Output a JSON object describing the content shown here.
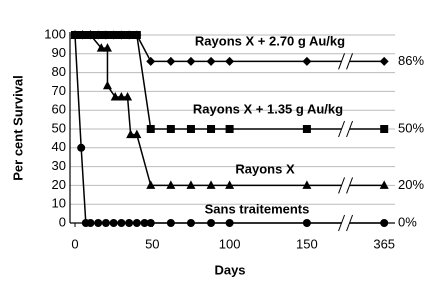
{
  "chart_data": {
    "type": "line",
    "y_label": "Per cent Survival",
    "x_label": "Days",
    "x": [
      0,
      5,
      10,
      15,
      20,
      25,
      30,
      35,
      40,
      49,
      62,
      75,
      88,
      100,
      150,
      365
    ],
    "xlim": [
      0,
      365
    ],
    "xticks": [
      0,
      50,
      100,
      150,
      365
    ],
    "ylim": [
      0,
      100
    ],
    "yticks": [
      0,
      10,
      20,
      30,
      40,
      50,
      60,
      70,
      80,
      90,
      100
    ],
    "grid": true,
    "x_axis_break": true,
    "series": [
      {
        "name": "Rayons X + 2.70 g Au/kg",
        "color": "#000000",
        "marker": "diamond",
        "x": [
          0,
          5,
          10,
          15,
          20,
          25,
          30,
          35,
          40,
          49,
          62,
          75,
          88,
          100,
          150,
          365
        ],
        "values": [
          100,
          100,
          100,
          100,
          100,
          100,
          100,
          100,
          100,
          86,
          86,
          86,
          86,
          86,
          86,
          86
        ],
        "value_labels": [
          null,
          null,
          null,
          null,
          null,
          null,
          null,
          null,
          null,
          null,
          null,
          null,
          null,
          null,
          null,
          "86%"
        ]
      },
      {
        "name": "Rayons X + 1.35 g Au/kg",
        "color": "#000000",
        "marker": "square",
        "x": [
          0,
          5,
          10,
          15,
          20,
          25,
          30,
          35,
          40,
          49,
          62,
          75,
          88,
          100,
          150,
          365
        ],
        "values": [
          100,
          100,
          100,
          100,
          100,
          100,
          100,
          100,
          100,
          50,
          50,
          50,
          50,
          50,
          50,
          50
        ],
        "value_labels": [
          null,
          null,
          null,
          null,
          null,
          null,
          null,
          null,
          null,
          null,
          null,
          null,
          null,
          null,
          null,
          "50%"
        ]
      },
      {
        "name": "Rayons X",
        "color": "#000000",
        "marker": "triangle",
        "x": [
          0,
          5,
          10,
          17,
          21,
          21,
          26,
          30,
          34,
          36,
          40,
          49,
          62,
          75,
          88,
          100,
          150,
          365
        ],
        "values": [
          100,
          100,
          100,
          93,
          93,
          73,
          67,
          67,
          67,
          47,
          47,
          20,
          20,
          20,
          20,
          20,
          20,
          20
        ],
        "value_labels": [
          null,
          null,
          null,
          null,
          null,
          null,
          null,
          null,
          null,
          null,
          null,
          null,
          null,
          null,
          null,
          null,
          null,
          "20%"
        ]
      },
      {
        "name": "Sans traitements",
        "color": "#000000",
        "marker": "circle",
        "x": [
          0,
          4,
          7,
          10,
          15,
          20,
          25,
          30,
          35,
          40,
          45,
          49,
          62,
          75,
          88,
          100,
          150,
          365
        ],
        "values": [
          100,
          40,
          0,
          0,
          0,
          0,
          0,
          0,
          0,
          0,
          0,
          0,
          0,
          0,
          0,
          0,
          0,
          0
        ],
        "value_labels": [
          null,
          null,
          null,
          null,
          null,
          null,
          null,
          null,
          null,
          null,
          null,
          null,
          null,
          null,
          null,
          null,
          null,
          "0%"
        ]
      }
    ]
  }
}
